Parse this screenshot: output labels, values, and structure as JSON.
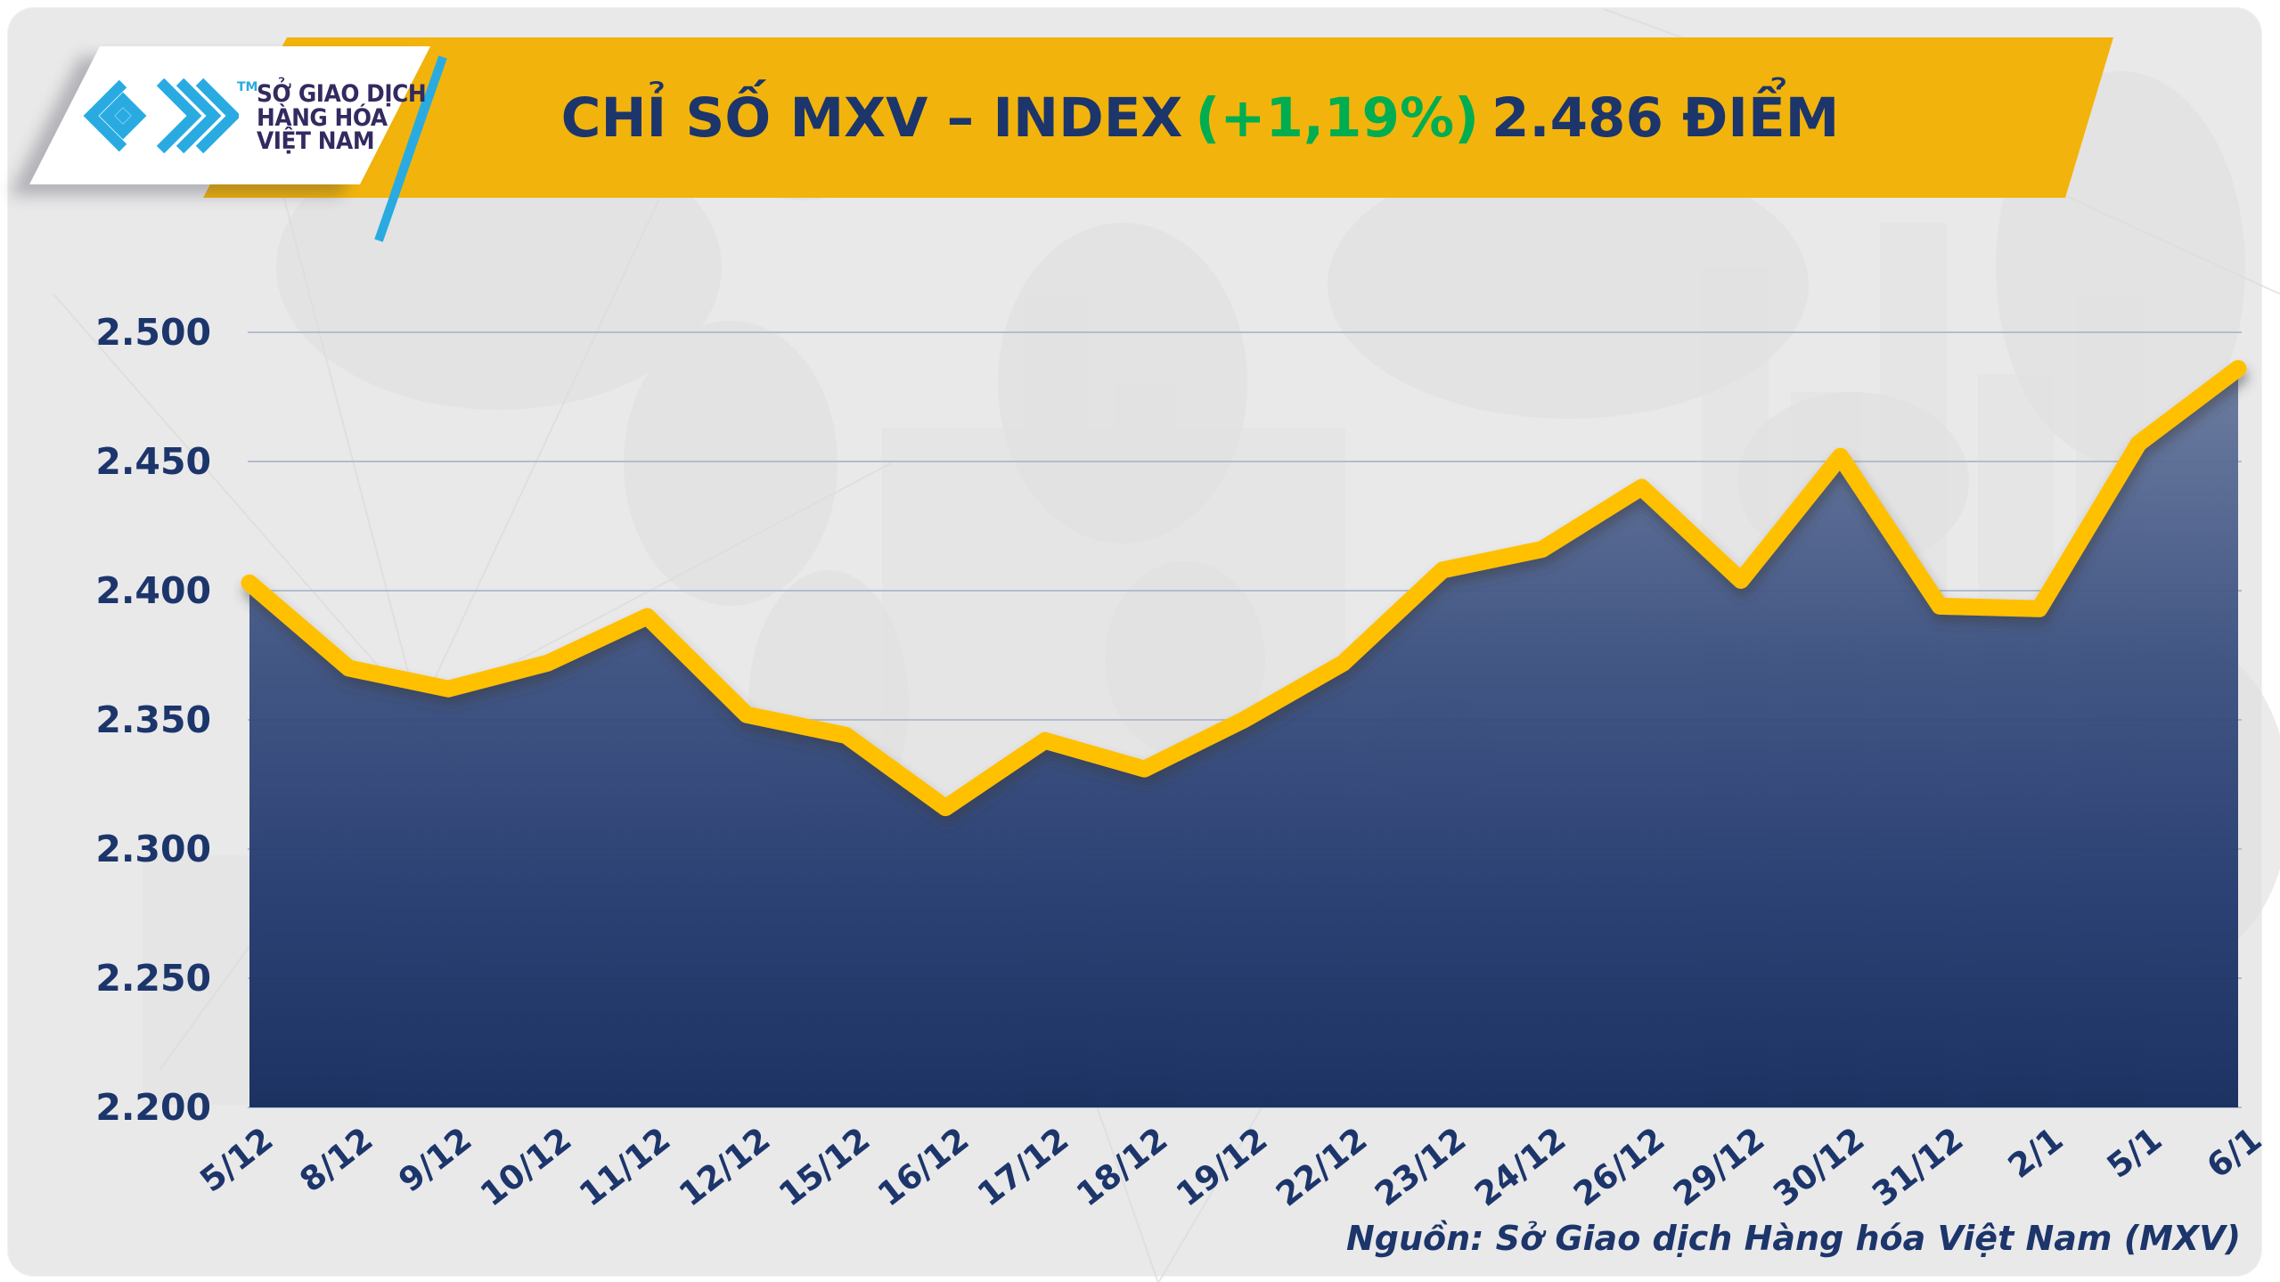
{
  "logo": {
    "tm": "TM",
    "line1": "SỞ GIAO DỊCH",
    "line2": "HÀNG HÓA",
    "line3": "VIỆT NAM"
  },
  "banner": {
    "title_prefix": "CHỈ SỐ MXV – INDEX",
    "change": "(+1,19%)",
    "title_suffix": "2.486 ĐIỂM"
  },
  "source_note": "Nguồn: Sở Giao dịch Hàng hóa Việt Nam (MXV)",
  "colors": {
    "banner_gold": "#F2B40C",
    "navy": "#1C356B",
    "green": "#00AD50",
    "logo_blue": "#29ABE2",
    "line_gold": "#FFC003",
    "fill_top": "#66779C",
    "fill_bottom": "#11295B",
    "gridline": "#AFB9CC",
    "background": "#E9E9E9"
  },
  "chart_data": {
    "type": "area",
    "title": "CHỈ SỐ MXV – INDEX (+1,19%) 2.486 ĐIỂM",
    "x": [
      "5/12",
      "8/12",
      "9/12",
      "10/12",
      "11/12",
      "12/12",
      "15/12",
      "16/12",
      "17/12",
      "18/12",
      "19/12",
      "22/12",
      "23/12",
      "24/12",
      "26/12",
      "29/12",
      "30/12",
      "31/12",
      "2/1",
      "5/1",
      "6/1"
    ],
    "values": [
      2403,
      2370,
      2362,
      2372,
      2390,
      2352,
      2344,
      2316,
      2342,
      2331,
      2350,
      2372,
      2408,
      2416,
      2440,
      2404,
      2452,
      2394,
      2393,
      2457,
      2486
    ],
    "xlabel": "",
    "ylabel": "",
    "unit": "ĐIỂM",
    "ylim": [
      2200,
      2500
    ],
    "ytick_values": [
      2500,
      2450,
      2400,
      2350,
      2300,
      2250,
      2200
    ],
    "ytick_labels": [
      "2.500",
      "2.450",
      "2.400",
      "2.350",
      "2.300",
      "2.250",
      "2.200"
    ],
    "grid": "horizontal",
    "legend": "none",
    "line_color": "#FFC003",
    "fill_gradient": [
      "#66779C",
      "#3B5080",
      "#21386D",
      "#11295B"
    ]
  }
}
